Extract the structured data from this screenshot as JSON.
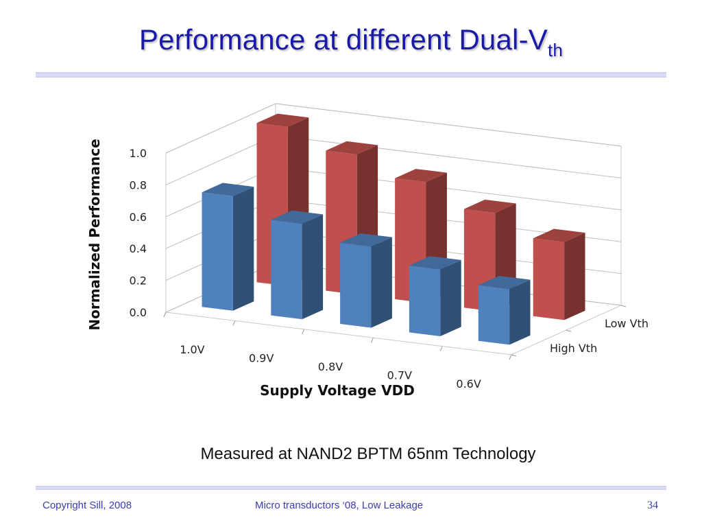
{
  "slide": {
    "title_main": "Performance at different Dual-V",
    "title_sub": "th",
    "caption": "Measured at NAND2 BPTM 65nm Technology",
    "footer_left": "Copyright Sill, 2008",
    "footer_center": "Micro transductors ‘08, Low Leakage",
    "page_number": "34"
  },
  "chart_data": {
    "type": "bar",
    "style": "3d-clustered-depth",
    "categories": [
      "1.0V",
      "0.9V",
      "0.8V",
      "0.7V",
      "0.6V"
    ],
    "series": [
      {
        "name": "Low Vth",
        "values": [
          1.0,
          0.88,
          0.76,
          0.62,
          0.49
        ],
        "color": "#c0504d"
      },
      {
        "name": "High Vth",
        "values": [
          0.72,
          0.6,
          0.51,
          0.42,
          0.35
        ],
        "color": "#4f81bd"
      }
    ],
    "xlabel": "Supply Voltage VDD",
    "ylabel": "Normalized Performance",
    "ylim": [
      0,
      1.0
    ],
    "yticks": [
      "0.0",
      "0.2",
      "0.4",
      "0.6",
      "0.8",
      "1.0"
    ],
    "grid": true,
    "legend": "right-depth-axis"
  }
}
